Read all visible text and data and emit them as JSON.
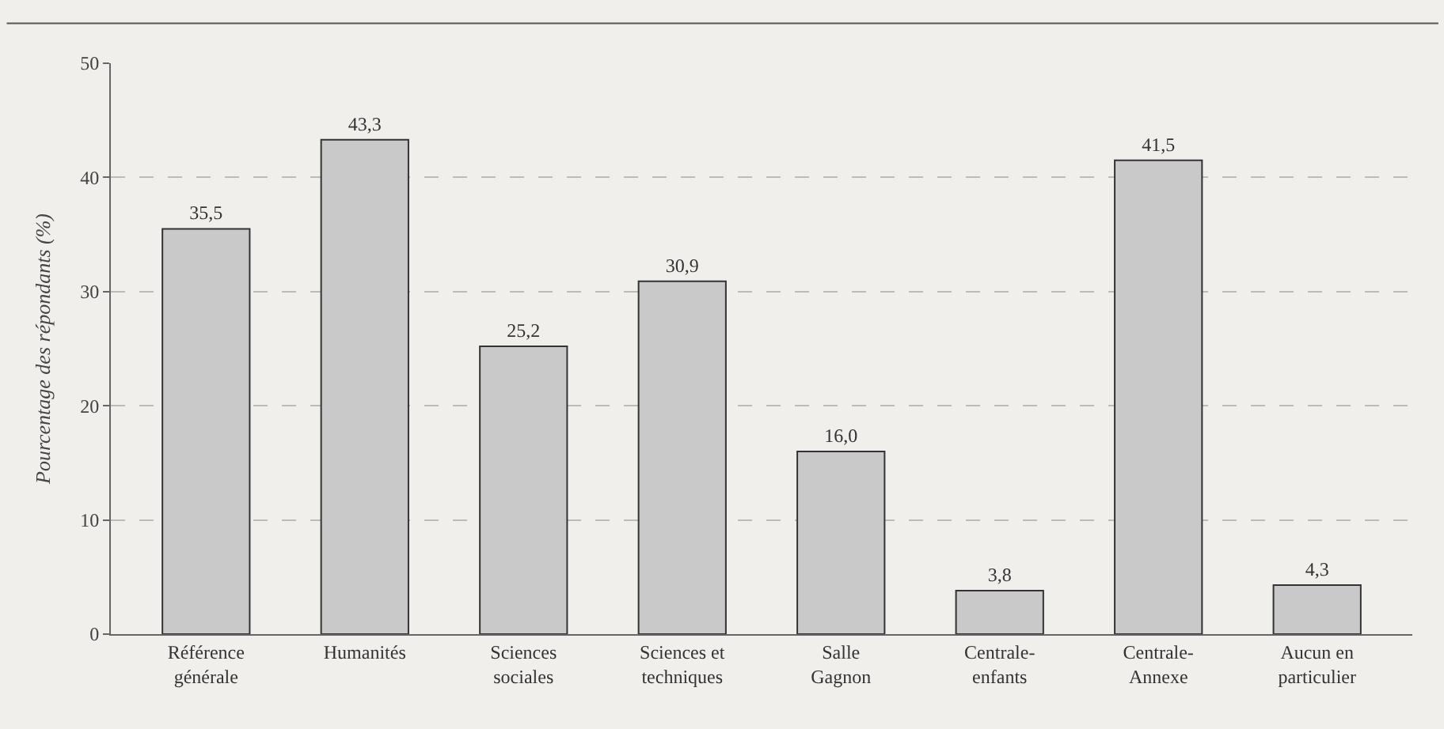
{
  "chart_data": {
    "type": "bar",
    "ylabel": "Pourcentage des répondants (%)",
    "categories": [
      "Référence\ngénérale",
      "Humanités",
      "Sciences\nsociales",
      "Sciences et\ntechniques",
      "Salle\nGagnon",
      "Centrale-\nenfants",
      "Centrale-\nAnnexe",
      "Aucun en\nparticulier"
    ],
    "values": [
      35.5,
      43.3,
      25.2,
      30.9,
      16.0,
      3.8,
      41.5,
      4.3
    ],
    "value_labels": [
      "35,5",
      "43,3",
      "25,2",
      "30,9",
      "16,0",
      "3,8",
      "41,5",
      "4,3"
    ],
    "color": "#c9c9c9",
    "ylim": [
      0,
      50
    ],
    "yticks": [
      0,
      10,
      20,
      30,
      40,
      50
    ],
    "grid": "y"
  }
}
